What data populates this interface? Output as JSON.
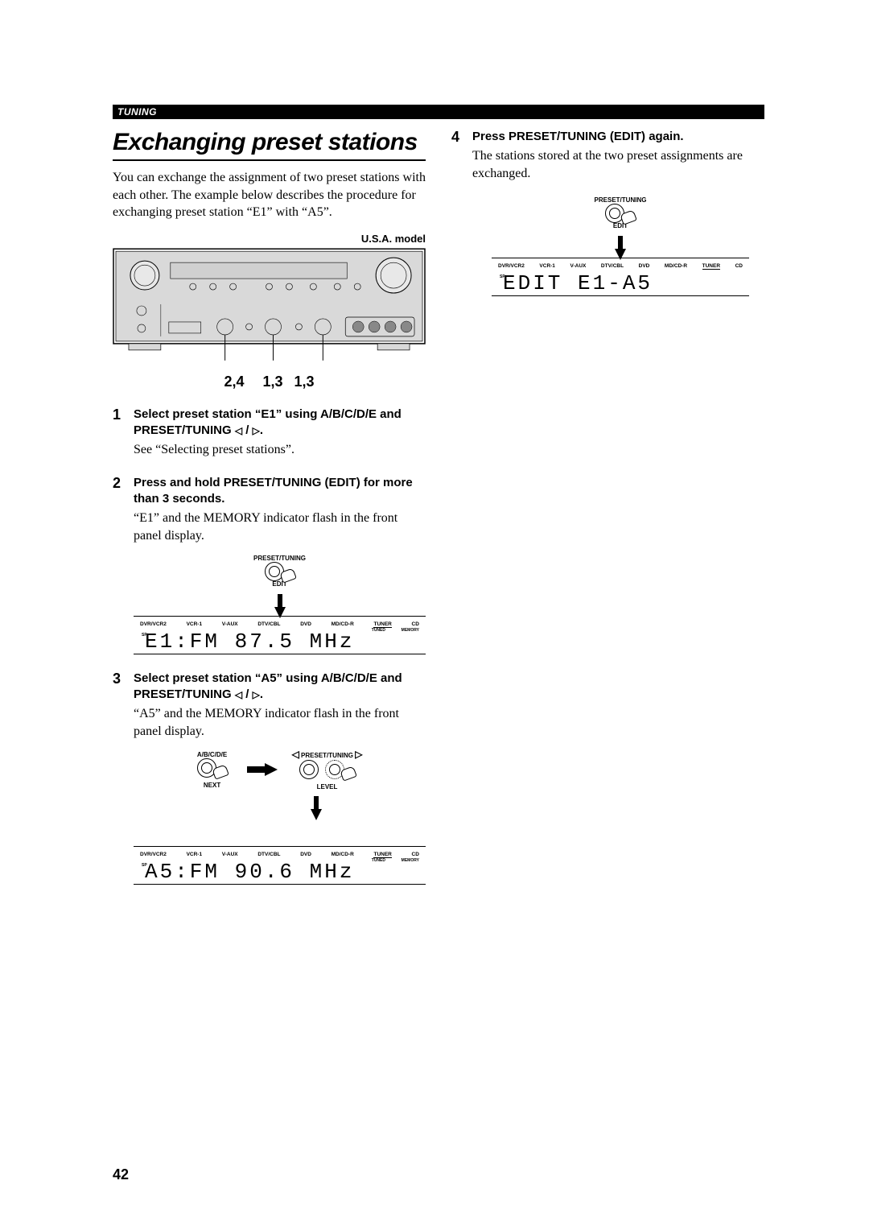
{
  "section_bar": "TUNING",
  "heading": "Exchanging preset stations",
  "intro": "You can exchange the assignment of two preset stations with each other. The example below describes the procedure for exchanging preset station “E1” with “A5”.",
  "model_label": "U.S.A. model",
  "pointer_numbers": "2,4  1,3  1,3",
  "steps": {
    "s1": {
      "num": "1",
      "title_a": "Select preset station “E1” using A/B/C/D/E and PRESET/TUNING ",
      "title_b": ".",
      "desc": "See “Selecting preset stations”."
    },
    "s2": {
      "num": "2",
      "title": "Press and hold PRESET/TUNING (EDIT) for more than 3 seconds.",
      "desc": "“E1” and the MEMORY indicator flash in the front panel display."
    },
    "s3": {
      "num": "3",
      "title_a": "Select preset station “A5” using A/B/C/D/E and PRESET/TUNING ",
      "title_b": ".",
      "desc": "“A5” and the MEMORY indicator flash in the front panel display."
    },
    "s4": {
      "num": "4",
      "title": "Press PRESET/TUNING (EDIT) again.",
      "desc": "The stations stored at the two preset assignments are exchanged."
    }
  },
  "btn_labels": {
    "preset_tuning": "PRESET/TUNING",
    "edit": "EDIT",
    "abcde": "A/B/C/D/E",
    "next": "NEXT",
    "level": "LEVEL"
  },
  "lcd": {
    "sources": [
      "DVR/VCR2",
      "VCR-1",
      "V-AUX",
      "DTV/CBL",
      "DVD",
      "MD/CD-R",
      "TUNER",
      "CD"
    ],
    "active_source_index": 6,
    "indicators": {
      "sp": "SP",
      "tuned": "TUNED",
      "memory": "MEMORY"
    },
    "display1": "E1:FM 87.5 MHz",
    "display2": "A5:FM 90.6 MHz",
    "display3": "EDIT  E1-A5"
  },
  "page_number": "42",
  "colors": {
    "text": "#000000",
    "background": "#ffffff",
    "diagram_fill": "#d9d9d9"
  }
}
